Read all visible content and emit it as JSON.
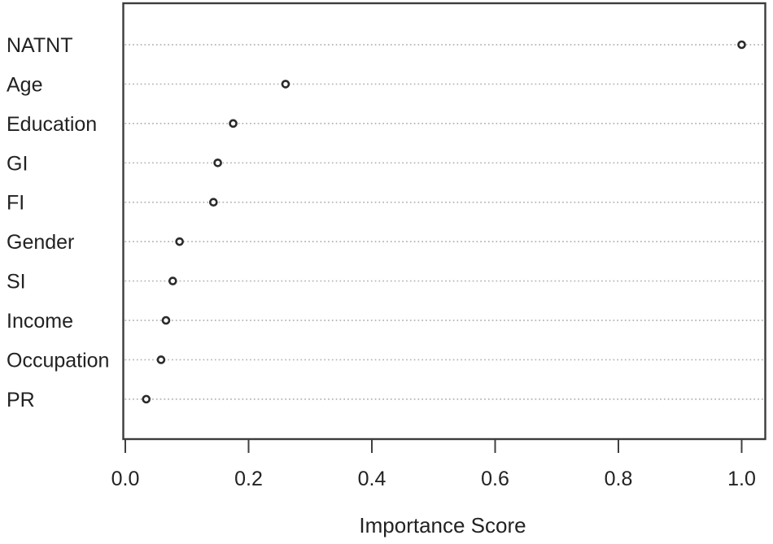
{
  "chart_data": {
    "type": "scatter",
    "variant": "dot-plot",
    "title": "",
    "xlabel": "Importance Score",
    "ylabel": "",
    "categories": [
      "NATNT",
      "Age",
      "Education",
      "GI",
      "FI",
      "Gender",
      "SI",
      "Income",
      "Occupation",
      "PR"
    ],
    "values": [
      1.0,
      0.26,
      0.175,
      0.15,
      0.143,
      0.088,
      0.077,
      0.066,
      0.058,
      0.034
    ],
    "xlim": [
      0.0,
      1.0
    ],
    "xticks": [
      0.0,
      0.2,
      0.4,
      0.6,
      0.8,
      1.0
    ],
    "xtick_labels": [
      "0.0",
      "0.2",
      "0.4",
      "0.6",
      "0.8",
      "1.0"
    ],
    "grid": "dotted-horizontal",
    "legend": "none",
    "point_style": "open-circle"
  },
  "colors": {
    "background": "#ffffff",
    "plot_border": "#3c3c3c",
    "grid_line": "#b3b3b3",
    "tick": "#404040",
    "point_stroke": "#2b2b2b",
    "point_fill": "#ffffff",
    "label_text": "#222222",
    "axis_text": "#222222"
  }
}
